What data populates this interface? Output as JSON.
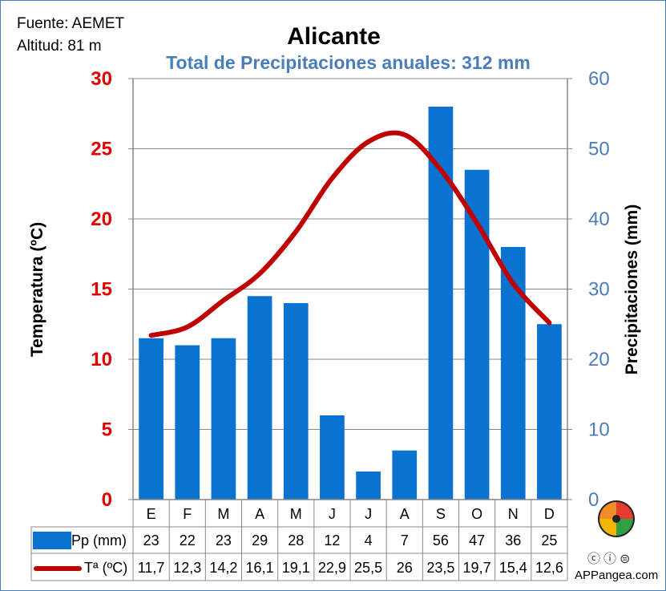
{
  "header": {
    "source": "Fuente: AEMET",
    "altitude": "Altitud: 81 m"
  },
  "credit": "APPangea.com",
  "colors": {
    "bars": "#0a72cf",
    "line": "#c00000",
    "left_axis": "#e00000",
    "right_axis": "#4a7ebb",
    "subtitle": "#4a7ebb"
  },
  "icons": [
    "puzzle-logo-icon",
    "cc-icon",
    "attribution-icon",
    "no-derivatives-icon"
  ],
  "chart_data": {
    "type": "bar+line",
    "title": "Alicante",
    "subtitle": "Total de Precipitaciones anuales: 312 mm",
    "categories": [
      "E",
      "F",
      "M",
      "A",
      "M",
      "J",
      "J",
      "A",
      "S",
      "O",
      "N",
      "D"
    ],
    "left_axis": {
      "label": "Temperatura (ºC)",
      "range": [
        0,
        30
      ],
      "ticks": [
        "0",
        "5",
        "10",
        "15",
        "20",
        "25",
        "30"
      ]
    },
    "right_axis": {
      "label": "Precipitaciones (mm)",
      "range": [
        0,
        60
      ],
      "ticks": [
        "0",
        "10",
        "20",
        "30",
        "40",
        "50",
        "60"
      ]
    },
    "grid": true,
    "series": [
      {
        "name": "Pp (mm)",
        "type": "bar",
        "axis": "right",
        "values": [
          23,
          22,
          23,
          29,
          28,
          12,
          4,
          7,
          56,
          47,
          36,
          25
        ],
        "labels": [
          "23",
          "22",
          "23",
          "29",
          "28",
          "12",
          "4",
          "7",
          "56",
          "47",
          "36",
          "25"
        ]
      },
      {
        "name": "Tª (ºC)",
        "type": "line",
        "axis": "left",
        "values": [
          11.7,
          12.3,
          14.2,
          16.1,
          19.1,
          22.9,
          25.5,
          26,
          23.5,
          19.7,
          15.4,
          12.6
        ],
        "labels": [
          "11,7",
          "12,3",
          "14,2",
          "16,1",
          "19,1",
          "22,9",
          "25,5",
          "26",
          "23,5",
          "19,7",
          "15,4",
          "12,6"
        ]
      }
    ]
  }
}
